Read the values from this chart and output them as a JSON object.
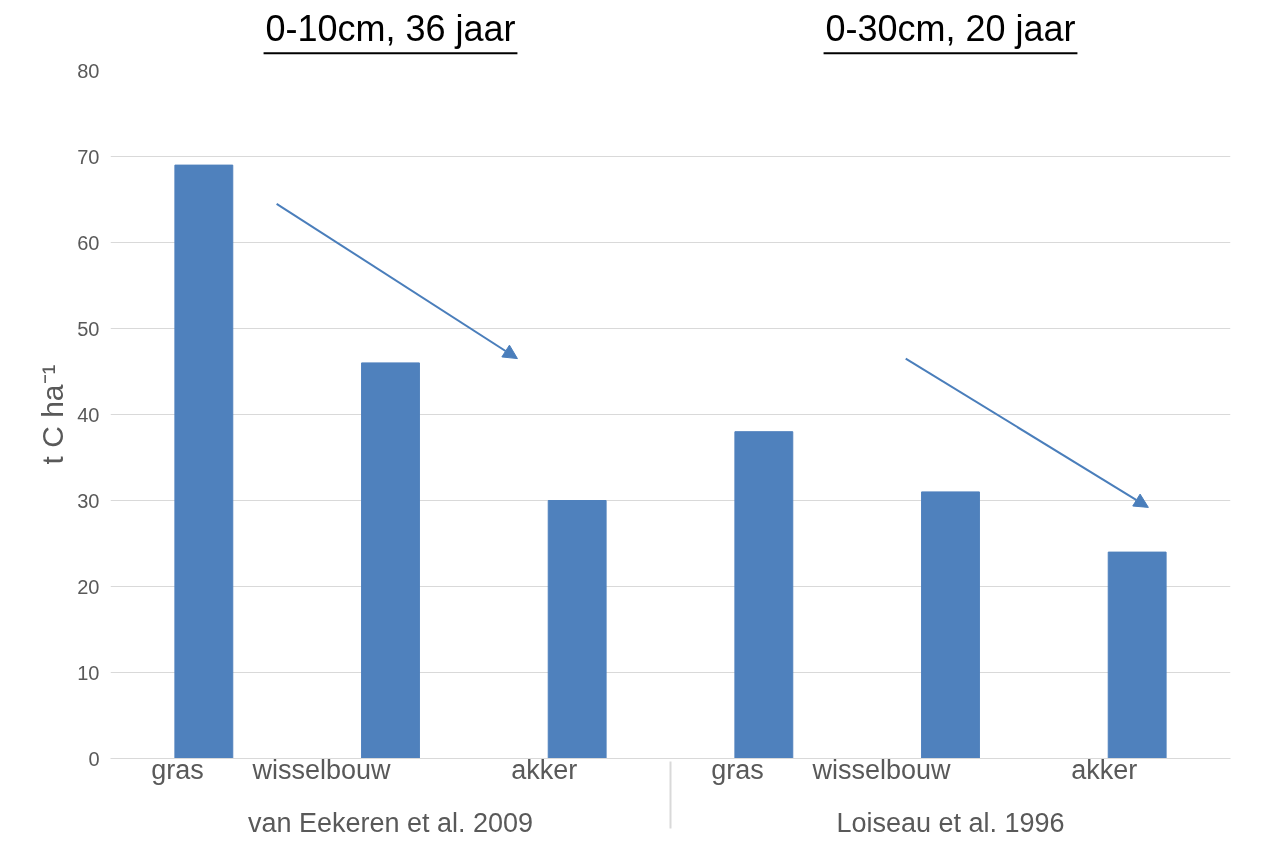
{
  "chart_data": {
    "type": "bar",
    "categories": [
      "gras",
      "wisselbouw",
      "akker",
      "gras",
      "wisselbouw",
      "akker"
    ],
    "values": [
      69,
      46,
      30,
      38,
      31,
      24
    ],
    "color": "#4f81bd",
    "ylabel": "t C ha⁻¹",
    "ylim": [
      0,
      80
    ],
    "yticks": [
      0,
      10,
      20,
      30,
      40,
      50,
      60,
      70,
      80
    ],
    "grid": "y",
    "annotations": [
      "0-10cm, 36 jaar",
      "0-30cm, 20 jaar",
      "van Eekeren et al. 2009",
      "Loiseau et al. 1996"
    ]
  }
}
